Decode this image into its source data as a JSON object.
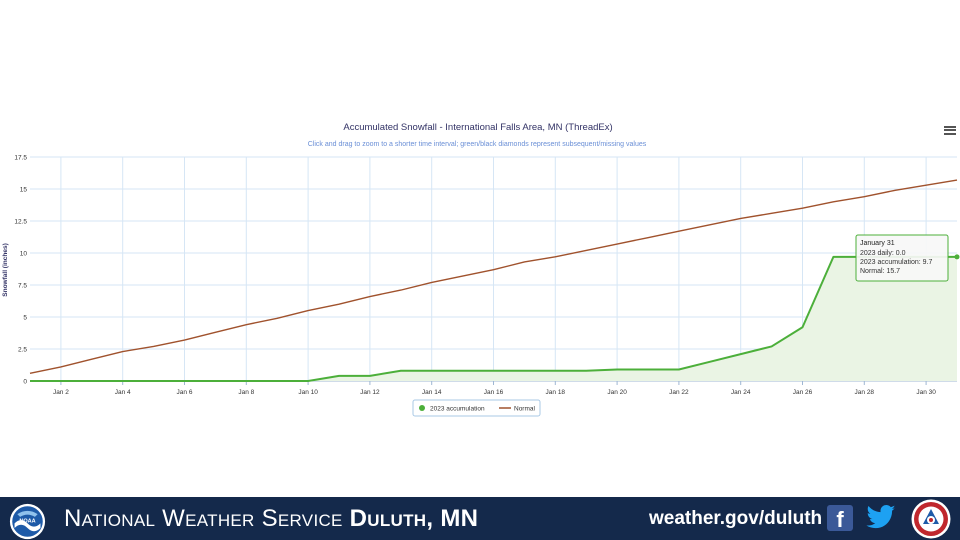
{
  "chart_data": {
    "type": "line",
    "title": "Accumulated Snowfall - International Falls Area, MN (ThreadEx)",
    "subtitle": "Click and drag to zoom to a shorter time interval; green/black diamonds represent subsequent/missing values",
    "ylabel": "Snowfall (inches)",
    "xlabel": "",
    "x_range": [
      1,
      31
    ],
    "ylim": [
      0,
      17.5
    ],
    "yticks": [
      0,
      2.5,
      5,
      7.5,
      10,
      12.5,
      15,
      17.5
    ],
    "ytick_labels": [
      "0",
      "2.5",
      "5",
      "7.5",
      "10",
      "12.5",
      "15",
      "17.5"
    ],
    "xticks": [
      2,
      4,
      6,
      8,
      10,
      12,
      14,
      16,
      18,
      20,
      22,
      24,
      26,
      28,
      30
    ],
    "xtick_labels": [
      "Jan 2",
      "Jan 4",
      "Jan 6",
      "Jan 8",
      "Jan 10",
      "Jan 12",
      "Jan 14",
      "Jan 16",
      "Jan 18",
      "Jan 20",
      "Jan 22",
      "Jan 24",
      "Jan 26",
      "Jan 28",
      "Jan 30"
    ],
    "grid": true,
    "legend_position": "bottom-center",
    "series": [
      {
        "name": "2023 accumulation",
        "color": "#4caf3a",
        "fill": "#eaf4e4",
        "x": [
          1,
          2,
          3,
          4,
          5,
          6,
          7,
          8,
          9,
          10,
          11,
          12,
          13,
          14,
          15,
          16,
          17,
          18,
          19,
          20,
          21,
          22,
          23,
          24,
          25,
          26,
          27,
          28,
          29,
          30,
          31
        ],
        "y": [
          0,
          0,
          0,
          0,
          0,
          0,
          0,
          0,
          0,
          0,
          0.4,
          0.4,
          0.8,
          0.8,
          0.8,
          0.8,
          0.8,
          0.8,
          0.8,
          0.9,
          0.9,
          0.9,
          1.5,
          2.1,
          2.7,
          4.2,
          9.7,
          9.7,
          9.7,
          9.7,
          9.7
        ]
      },
      {
        "name": "Normal",
        "color": "#a0522d",
        "x": [
          1,
          2,
          3,
          4,
          5,
          6,
          7,
          8,
          9,
          10,
          11,
          12,
          13,
          14,
          15,
          16,
          17,
          18,
          19,
          20,
          21,
          22,
          23,
          24,
          25,
          26,
          27,
          28,
          29,
          30,
          31
        ],
        "y": [
          0.6,
          1.1,
          1.7,
          2.3,
          2.7,
          3.2,
          3.8,
          4.4,
          4.9,
          5.5,
          6.0,
          6.6,
          7.1,
          7.7,
          8.2,
          8.7,
          9.3,
          9.7,
          10.2,
          10.7,
          11.2,
          11.7,
          12.2,
          12.7,
          13.1,
          13.5,
          14.0,
          14.4,
          14.9,
          15.3,
          15.7
        ]
      }
    ],
    "tooltip": {
      "header": "January 31",
      "lines": [
        "2023 daily: 0.0",
        "2023 accumulation: 9.7",
        "Normal: 15.7"
      ]
    }
  },
  "footer": {
    "brand_light": "National Weather Service ",
    "brand_bold": "Duluth, MN",
    "site": "weather.gov/duluth",
    "noaa_logo_text": "NOAA",
    "icons": [
      "hamburger-menu-icon",
      "facebook-icon",
      "twitter-icon",
      "noaa-logo-icon",
      "nws-logo-icon"
    ]
  }
}
